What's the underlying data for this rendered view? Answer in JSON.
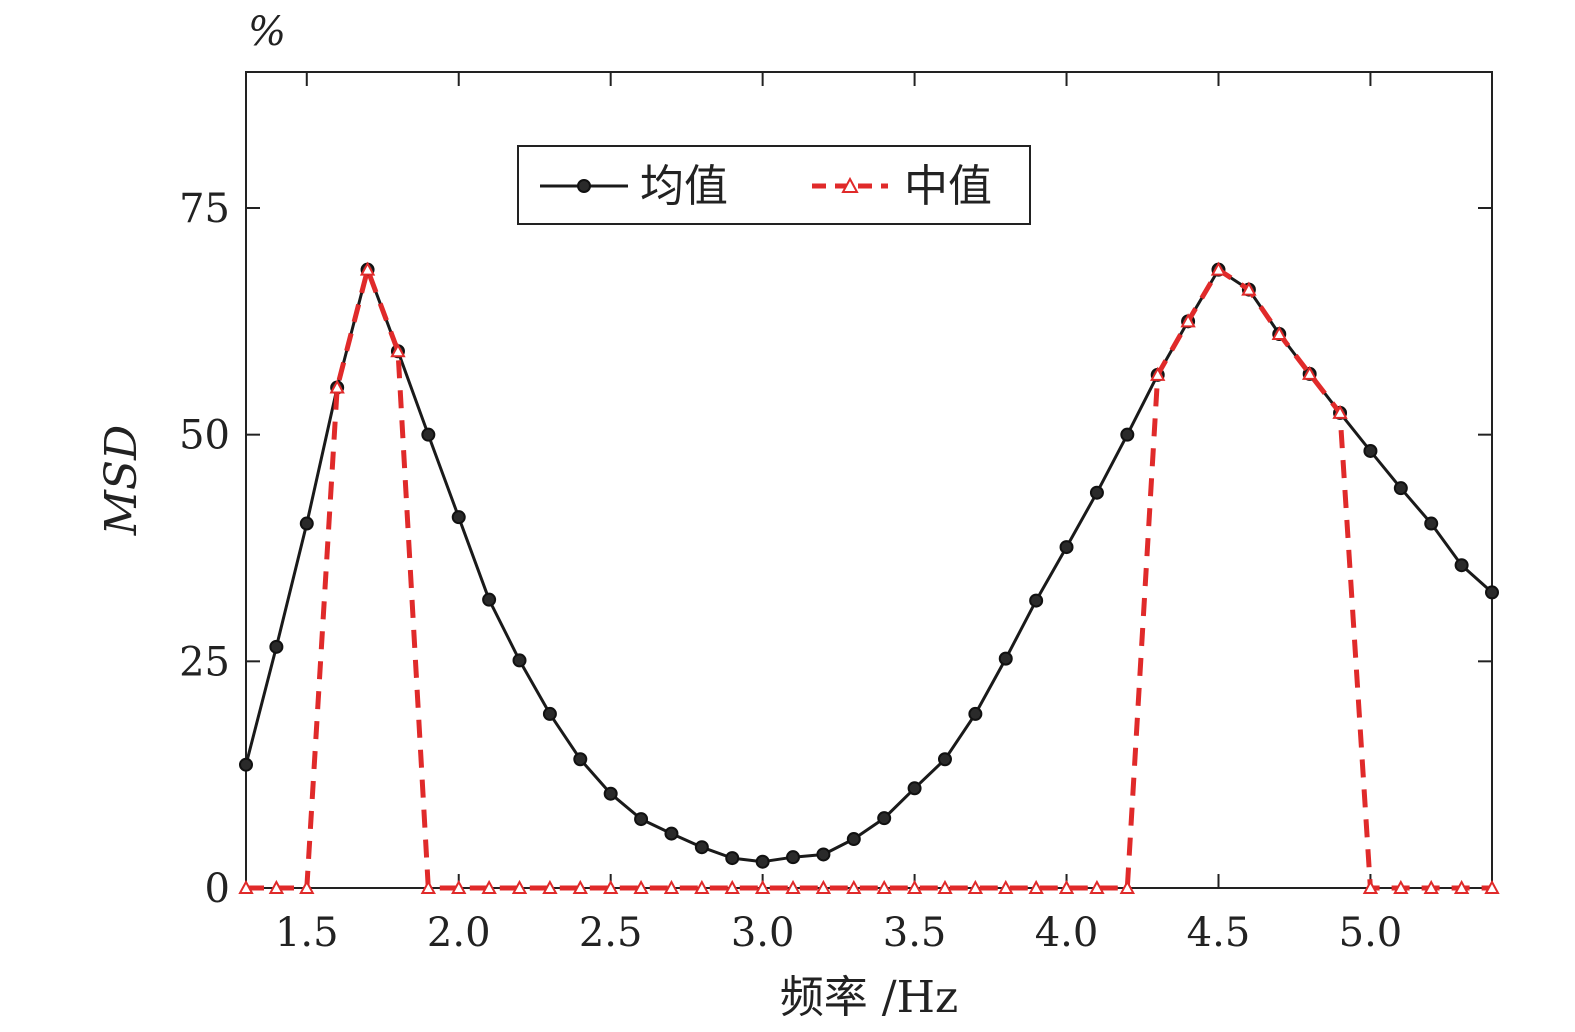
{
  "chart_data": {
    "type": "line",
    "unit_label": "%",
    "xlabel": "频率 /Hz",
    "ylabel": "MSD",
    "xlim": [
      1.3,
      5.4
    ],
    "ylim": [
      0,
      90
    ],
    "xticks": [
      "1.5",
      "2.0",
      "2.5",
      "3.0",
      "3.5",
      "4.0",
      "4.5",
      "5.0"
    ],
    "yticks": [
      "0",
      "25",
      "50",
      "75"
    ],
    "grid": false,
    "legend_position": "top-center",
    "x": [
      1.3,
      1.4,
      1.5,
      1.6,
      1.7,
      1.8,
      1.9,
      2.0,
      2.1,
      2.2,
      2.3,
      2.4,
      2.5,
      2.6,
      2.7,
      2.8,
      2.9,
      3.0,
      3.1,
      3.2,
      3.3,
      3.4,
      3.5,
      3.6,
      3.7,
      3.8,
      3.9,
      4.0,
      4.1,
      4.2,
      4.3,
      4.4,
      4.5,
      4.6,
      4.7,
      4.8,
      4.9,
      5.0,
      5.1,
      5.2,
      5.3,
      5.4
    ],
    "series": [
      {
        "name": "均值",
        "color": "#1a1a1a",
        "marker": "circle",
        "line_style": "solid",
        "values": [
          13.6,
          26.6,
          40.2,
          55.2,
          68.2,
          59.2,
          50.0,
          40.9,
          31.8,
          25.1,
          19.2,
          14.2,
          10.4,
          7.6,
          6.0,
          4.5,
          3.3,
          2.9,
          3.4,
          3.7,
          5.4,
          7.7,
          11.0,
          14.2,
          19.2,
          25.3,
          31.7,
          37.6,
          43.6,
          50.0,
          56.6,
          62.5,
          68.2,
          66.0,
          61.1,
          56.7,
          52.4,
          48.2,
          44.1,
          40.2,
          35.6,
          32.6
        ]
      },
      {
        "name": "中值",
        "color": "#e02a2a",
        "marker": "triangle",
        "line_style": "dashed",
        "values": [
          0,
          0,
          0,
          55.2,
          68.2,
          59.2,
          0,
          0,
          0,
          0,
          0,
          0,
          0,
          0,
          0,
          0,
          0,
          0,
          0,
          0,
          0,
          0,
          0,
          0,
          0,
          0,
          0,
          0,
          0,
          0,
          56.6,
          62.5,
          68.2,
          66.0,
          61.1,
          56.7,
          52.4,
          0,
          0,
          0,
          0,
          0
        ]
      }
    ]
  }
}
